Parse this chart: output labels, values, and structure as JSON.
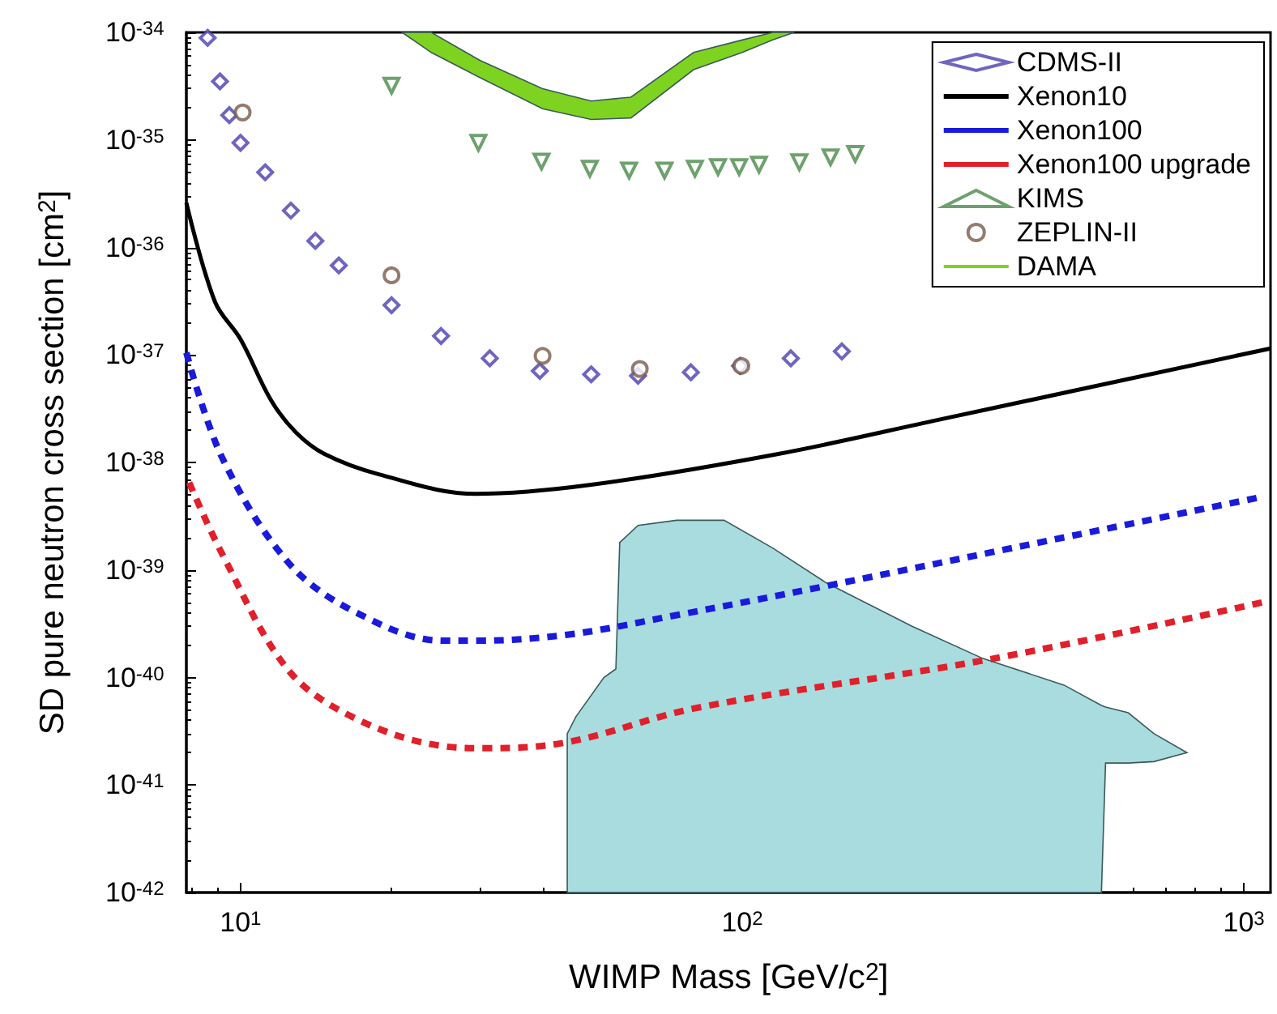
{
  "chart_data": {
    "type": "line",
    "xlabel": "WIMP Mass [GeV/c$^{2}$]",
    "ylabel": "SD pure neutron cross section [cm$^{2}$]",
    "log": "xy",
    "legend": "top right",
    "xlim": [
      7.8,
      1130
    ],
    "ylim": [
      1e-42,
      1e-34
    ],
    "xticks": [
      {
        "value": 10,
        "label": "10$^{1}$"
      },
      {
        "value": 100,
        "label": "10$^{2}$"
      },
      {
        "value": 1000,
        "label": "10$^{3}$"
      }
    ],
    "yticks": [
      {
        "value": 1e-42,
        "label": "10$^{-42}$"
      },
      {
        "value": 1e-41,
        "label": "10$^{-41}$"
      },
      {
        "value": 1e-40,
        "label": "10$^{-40}$"
      },
      {
        "value": 1e-39,
        "label": "10$^{-39}$"
      },
      {
        "value": 1e-38,
        "label": "10$^{-38}$"
      },
      {
        "value": 1e-37,
        "label": "10$^{-37}$"
      },
      {
        "value": 1e-36,
        "label": "10$^{-36}$"
      },
      {
        "value": 1e-35,
        "label": "10$^{-35}$"
      },
      {
        "value": 1e-34,
        "label": "10$^{-34}$"
      }
    ],
    "series": [
      {
        "type": "area",
        "color": "#a9dcdf",
        "x": [
          44.8,
          44.8,
          46.6,
          53,
          56,
          57,
          62,
          74,
          92,
          115,
          147,
          218,
          302,
          438,
          520,
          530,
          588,
          662,
          770
        ],
        "lower": [
          1e-42,
          1e-42,
          1e-42,
          1e-42,
          1e-42,
          1e-42,
          1e-42,
          1e-42,
          1e-42,
          1e-42,
          1e-42,
          1e-42,
          1e-42,
          1e-42,
          1e-42,
          1.6e-41,
          1.6e-41,
          1.65e-41,
          2e-41
        ],
        "values": [
          null,
          null,
          null,
          null,
          null,
          null,
          null,
          null,
          null,
          null,
          null,
          null,
          null,
          null,
          null,
          null,
          null,
          null,
          null
        ],
        "upper": [
          1e-42,
          3e-41,
          4.3e-41,
          1e-40,
          1.2e-40,
          1.8e-39,
          2.6e-39,
          2.9e-39,
          2.9e-39,
          1.6e-39,
          7.6e-40,
          3e-40,
          1.5e-40,
          8.5e-41,
          5.5e-41,
          5.3e-41,
          4.7e-41,
          3e-41,
          2e-41
        ]
      },
      {
        "name": "CDMS-II",
        "type": "scatter",
        "marker": "diamond",
        "color": "#4b3fb0",
        "x": [
          8.6,
          9.1,
          9.5,
          10,
          11.2,
          12.6,
          14.1,
          15.7,
          20,
          25.1,
          31.4,
          39.5,
          50,
          62,
          79,
          99,
          125,
          158
        ],
        "values": [
          8.9e-35,
          3.5e-35,
          1.7e-35,
          9.4e-36,
          5e-36,
          2.2e-36,
          1.15e-36,
          6.8e-37,
          2.9e-37,
          1.5e-37,
          9.3e-38,
          7.1e-38,
          6.6e-38,
          6.4e-38,
          6.9e-38,
          7.9e-38,
          9.3e-38,
          1.08e-37
        ]
      },
      {
        "name": "Xenon10",
        "line_style": "solid",
        "color": "#000000",
        "x": [
          7.8,
          8.9,
          10,
          11.5,
          12.9,
          14.7,
          18.8,
          29.4,
          50,
          118,
          247,
          1130
        ],
        "values": [
          2.6e-36,
          3.1e-37,
          1.4e-37,
          3.8e-38,
          1.9e-38,
          1.2e-38,
          7.8e-39,
          5.1e-39,
          6.2e-39,
          1.2e-38,
          2.5e-38,
          1.15e-37
        ]
      },
      {
        "name": "Xenon100",
        "line_style": "dashed",
        "color": "#1a1adb",
        "x": [
          7.8,
          9.2,
          12.4,
          16.7,
          25.3,
          29.4,
          44.8,
          74,
          147,
          459,
          1090
        ],
        "values": [
          1.05e-37,
          1.1e-38,
          1.2e-39,
          4.2e-40,
          2.2e-40,
          2.2e-40,
          2.5e-40,
          3.8e-40,
          7.1e-40,
          2.1e-39,
          4.8e-39
        ]
      },
      {
        "name": "Xenon100 upgrade",
        "line_style": "dashed",
        "color": "#e0202a",
        "x": [
          7.9,
          9.2,
          12.4,
          16.7,
          25.3,
          30.9,
          44.8,
          81,
          317,
          1090
        ],
        "values": [
          6.5e-39,
          1.4e-39,
          1.2e-40,
          4.3e-41,
          2.3e-41,
          2.2e-41,
          2.5e-41,
          5.2e-41,
          1.5e-40,
          5e-40
        ]
      },
      {
        "name": "KIMS",
        "type": "scatter",
        "marker": "triangle",
        "color": "#4a8a4a",
        "x": [
          20,
          29.8,
          39.8,
          49.7,
          59.5,
          70,
          80.5,
          89.5,
          98.6,
          108,
          130,
          150,
          168
        ],
        "values": [
          3.2e-35,
          9.4e-36,
          6.3e-36,
          5.4e-36,
          5.2e-36,
          5.2e-36,
          5.4e-36,
          5.6e-36,
          5.6e-36,
          5.9e-36,
          6.2e-36,
          6.9e-36,
          7.4e-36
        ]
      },
      {
        "name": "ZEPLIN-II",
        "type": "scatter",
        "marker": "circle",
        "color": "#7a5a4a",
        "x": [
          10.1,
          20,
          40,
          62.5,
          99.6
        ],
        "values": [
          1.8e-35,
          5.5e-37,
          9.8e-38,
          7.4e-38,
          7.9e-38
        ]
      },
      {
        "name": "DAMA",
        "type": "area",
        "color": "#7ed321",
        "x": [
          21,
          24,
          30,
          40,
          50,
          60,
          80,
          100,
          115,
          127
        ],
        "lower": [
          1e-34,
          6.5e-35,
          3.8e-35,
          1.95e-35,
          1.55e-35,
          1.6e-35,
          4.5e-35,
          6.5e-35,
          8.5e-35,
          1e-34
        ],
        "values": [
          null,
          null,
          null,
          null,
          null,
          null,
          null,
          null,
          null,
          null
        ],
        "upper": [
          1e-34,
          1e-34,
          5.5e-35,
          3e-35,
          2.3e-35,
          2.5e-35,
          6.5e-35,
          8.5e-35,
          1e-34,
          1e-34
        ]
      }
    ]
  }
}
